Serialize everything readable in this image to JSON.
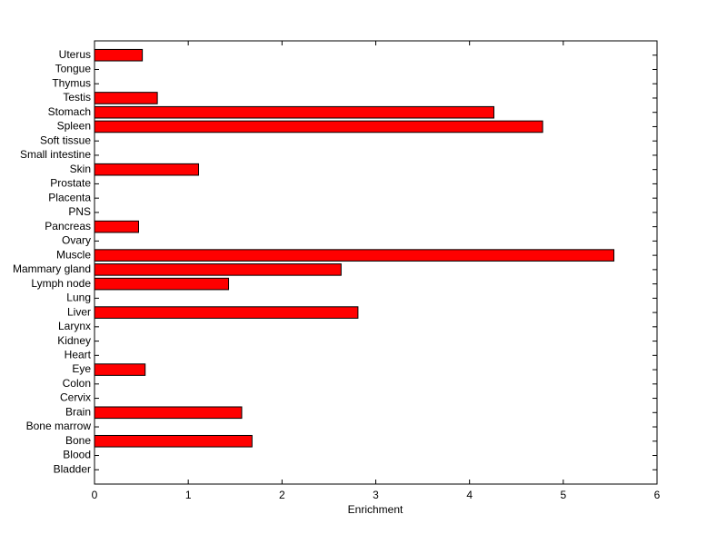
{
  "chart_data": {
    "type": "barh",
    "xlabel": "Enrichment",
    "categories": [
      "Bladder",
      "Blood",
      "Bone",
      "Bone marrow",
      "Brain",
      "Cervix",
      "Colon",
      "Eye",
      "Heart",
      "Kidney",
      "Larynx",
      "Liver",
      "Lung",
      "Lymph node",
      "Mammary gland",
      "Muscle",
      "Ovary",
      "Pancreas",
      "PNS",
      "Placenta",
      "Prostate",
      "Skin",
      "Small intestine",
      "Soft tissue",
      "Spleen",
      "Stomach",
      "Testis",
      "Thymus",
      "Tongue",
      "Uterus"
    ],
    "values": [
      0,
      0,
      1.68,
      0,
      1.57,
      0,
      0,
      0.54,
      0,
      0,
      0,
      2.81,
      0,
      1.43,
      2.63,
      5.54,
      0,
      0.47,
      0,
      0,
      0,
      1.11,
      0,
      0,
      4.78,
      4.26,
      0.67,
      0,
      0,
      0.51
    ],
    "color": "#ff0000",
    "xlim": [
      0,
      6
    ],
    "xticks": [
      0,
      1,
      2,
      3,
      4,
      5,
      6
    ]
  }
}
